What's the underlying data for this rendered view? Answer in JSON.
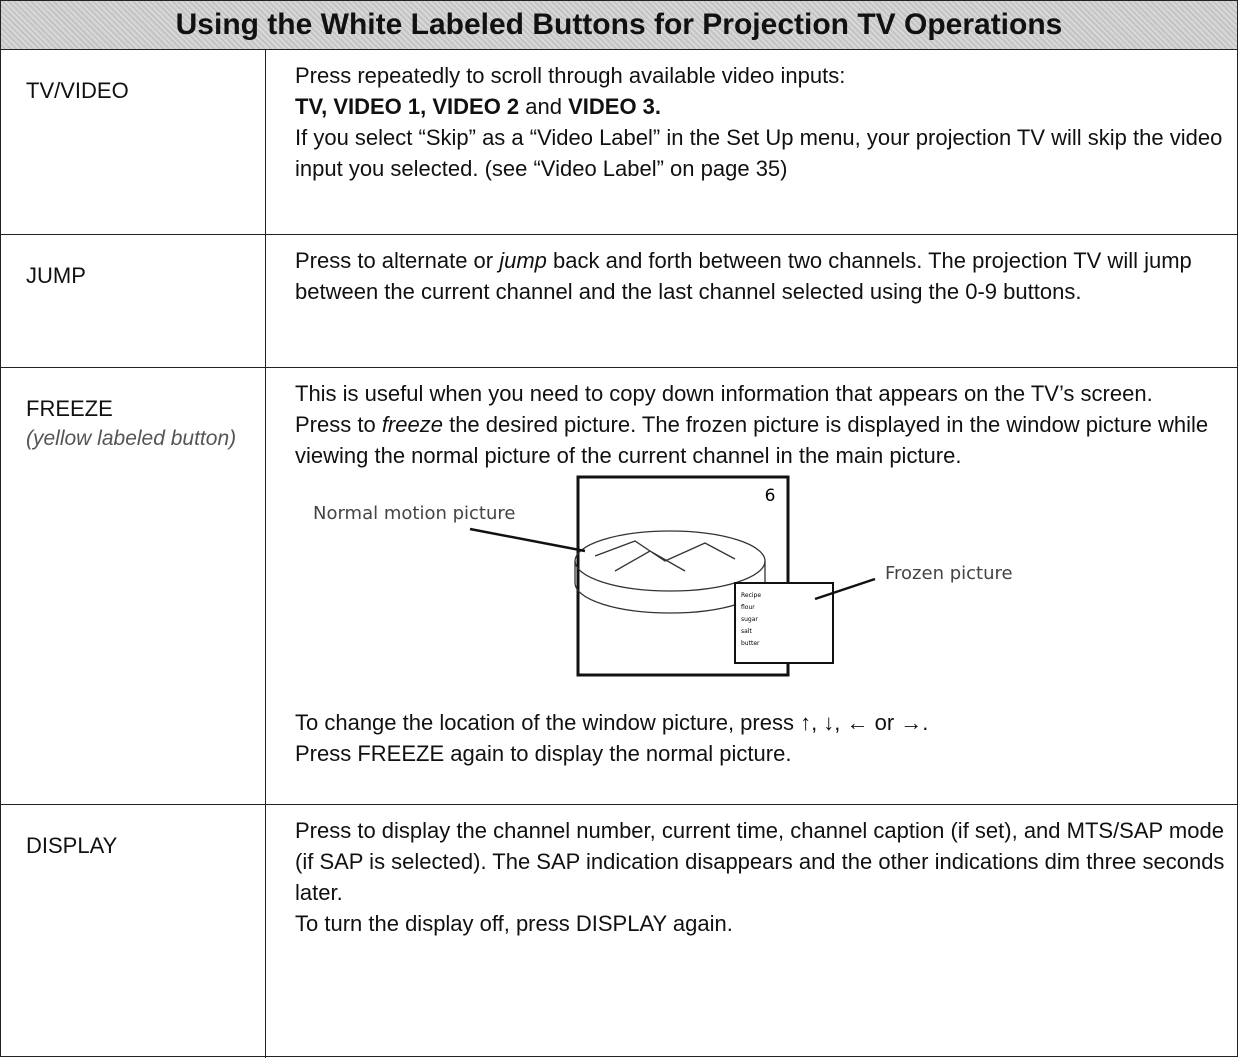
{
  "header": {
    "title": "Using the White Labeled Buttons for Projection TV Operations"
  },
  "table": {
    "rows": [
      {
        "label": "TV/VIDEO",
        "desc": [
          [
            "Press repeatedly to scroll through available video inputs:"
          ],
          [
            "TV, VIDEO 1, VIDEO 2",
            " and ",
            "VIDEO 3."
          ],
          [
            "If you select “Skip” as a “Video Label” in the Set Up menu, your projection TV will skip the video input you selected. (see “Video Label” on page 35)"
          ]
        ]
      },
      {
        "label": "JUMP",
        "desc": [
          [
            "Press to alternate or ",
            "jump",
            " back and forth between two channels. The projection TV will jump between the current channel and the last channel selected using the 0-9 buttons."
          ]
        ]
      },
      {
        "label": "FREEZE",
        "sublabel": "(yellow labeled button)",
        "desc": [
          [
            "This is useful when you need to copy down information that appears on the TV’s screen."
          ],
          [
            "Press to ",
            "freeze",
            " the desired picture. The frozen picture is displayed in the window picture while viewing the normal picture of the current channel in the main picture."
          ],
          [
            "To change the location of the window picture, press ↑, ↓, ← or →."
          ],
          [
            "Press FREEZE again to display the normal picture."
          ]
        ],
        "figure": {
          "channel": "6",
          "normal_label": "Normal motion picture",
          "frozen_label": "Frozen picture",
          "inset": [
            "Recipe",
            "flour",
            "sugar",
            "salt",
            "butter"
          ]
        }
      },
      {
        "label": "DISPLAY",
        "desc": [
          [
            "Press to display the channel number, current time, channel caption (if set), and MTS/SAP mode (if SAP is selected). The SAP indication disappears and the other indications dim three seconds later."
          ],
          [
            "To turn the display off, press DISPLAY again."
          ]
        ]
      }
    ]
  }
}
